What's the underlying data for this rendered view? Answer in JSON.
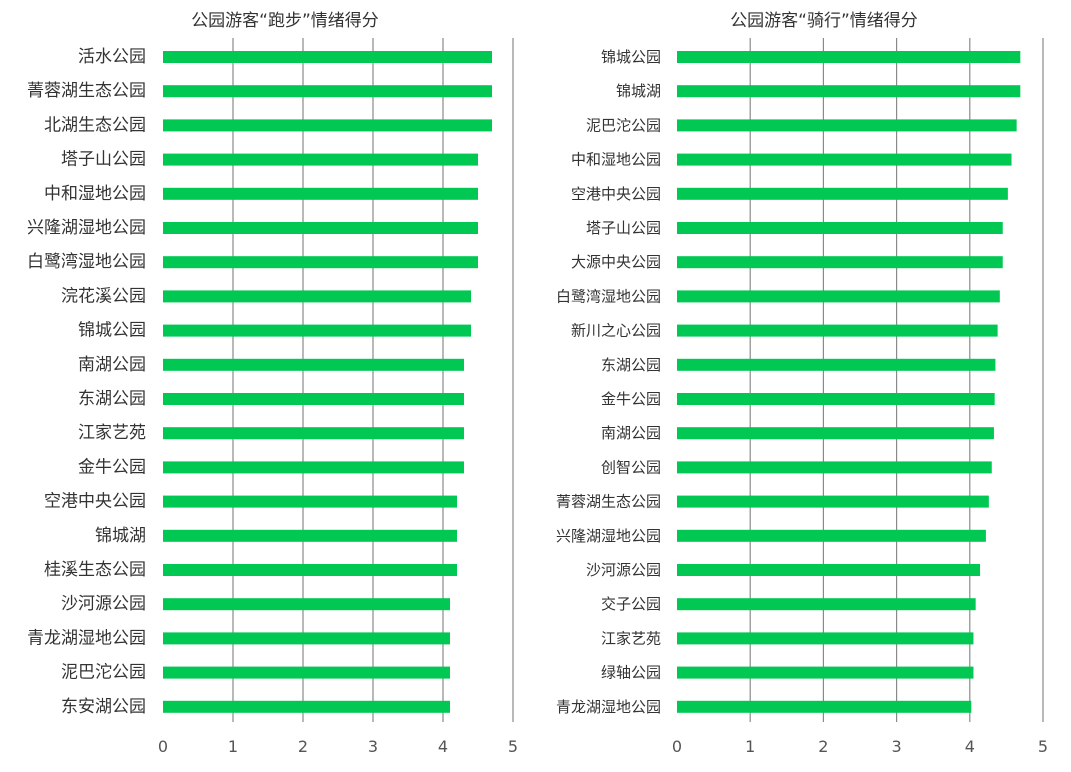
{
  "colors": {
    "bar": "#00c853",
    "grid": "#8a8a8a",
    "text": "#333333"
  },
  "chart_data": [
    {
      "type": "bar",
      "orientation": "horizontal",
      "title": "公园游客“跑步”情绪得分",
      "xlim": [
        0,
        5
      ],
      "xticks": [
        "0",
        "1",
        "2",
        "3",
        "4",
        "5"
      ],
      "grid": true,
      "categories": [
        "活水公园",
        "菁蓉湖生态公园",
        "北湖生态公园",
        "塔子山公园",
        "中和湿地公园",
        "兴隆湖湿地公园",
        "白鹭湾湿地公园",
        "浣花溪公园",
        "锦城公园",
        "南湖公园",
        "东湖公园",
        "江家艺苑",
        "金牛公园",
        "空港中央公园",
        "锦城湖",
        "桂溪生态公园",
        "沙河源公园",
        "青龙湖湿地公园",
        "泥巴沱公园",
        "东安湖公园"
      ],
      "values": [
        4.7,
        4.7,
        4.7,
        4.5,
        4.5,
        4.5,
        4.5,
        4.4,
        4.4,
        4.3,
        4.3,
        4.3,
        4.3,
        4.2,
        4.2,
        4.2,
        4.1,
        4.1,
        4.1,
        4.1
      ]
    },
    {
      "type": "bar",
      "orientation": "horizontal",
      "title": "公园游客“骑行”情绪得分",
      "xlim": [
        0,
        5
      ],
      "xticks": [
        "0",
        "1",
        "2",
        "3",
        "4",
        "5"
      ],
      "grid": true,
      "categories": [
        "锦城公园",
        "锦城湖",
        "泥巴沱公园",
        "中和湿地公园",
        "空港中央公园",
        "塔子山公园",
        "大源中央公园",
        "白鹭湾湿地公园",
        "新川之心公园",
        "东湖公园",
        "金牛公园",
        "南湖公园",
        "创智公园",
        "菁蓉湖生态公园",
        "兴隆湖湿地公园",
        "沙河源公园",
        "交子公园",
        "江家艺苑",
        "绿轴公园",
        "青龙湖湿地公园"
      ],
      "values": [
        4.69,
        4.69,
        4.64,
        4.57,
        4.52,
        4.45,
        4.45,
        4.41,
        4.38,
        4.35,
        4.34,
        4.33,
        4.3,
        4.26,
        4.22,
        4.14,
        4.08,
        4.05,
        4.05,
        4.02
      ]
    }
  ]
}
